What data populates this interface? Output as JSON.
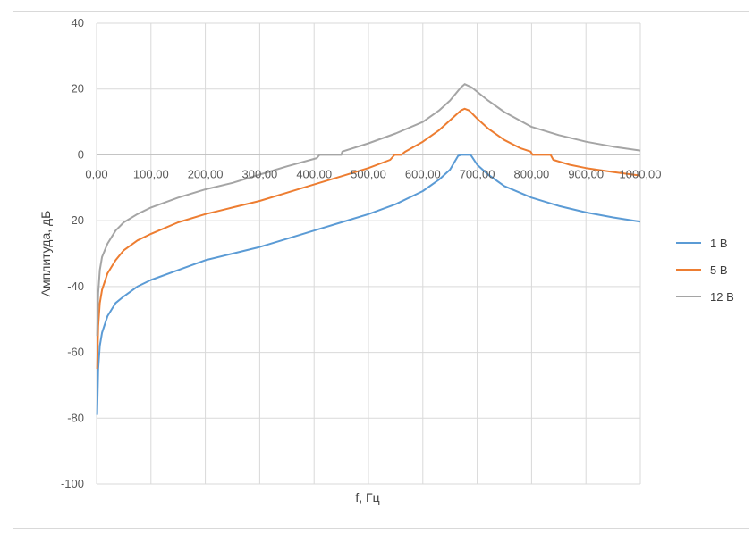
{
  "chart_data": {
    "type": "line",
    "xlabel": "f, Гц",
    "ylabel": "Амплитуда, дБ",
    "xlim": [
      0,
      1000
    ],
    "ylim": [
      -100,
      40
    ],
    "x_ticks": [
      "0,00",
      "100,00",
      "200,00",
      "300,00",
      "400,00",
      "500,00",
      "600,00",
      "700,00",
      "800,00",
      "900,00",
      "1000,00"
    ],
    "y_ticks": [
      "40",
      "20",
      "0",
      "-20",
      "-40",
      "-60",
      "-80",
      "-100"
    ],
    "grid": true,
    "legend_position": "right",
    "series": [
      {
        "name": "1 В",
        "color": "#5b9bd5",
        "points": [
          [
            1,
            -79
          ],
          [
            3,
            -65
          ],
          [
            6,
            -58
          ],
          [
            10,
            -54
          ],
          [
            20,
            -49
          ],
          [
            35,
            -45
          ],
          [
            50,
            -43
          ],
          [
            75,
            -40
          ],
          [
            100,
            -38
          ],
          [
            150,
            -35
          ],
          [
            200,
            -32
          ],
          [
            250,
            -30
          ],
          [
            300,
            -28
          ],
          [
            350,
            -25.5
          ],
          [
            400,
            -23
          ],
          [
            450,
            -20.5
          ],
          [
            500,
            -18
          ],
          [
            550,
            -15
          ],
          [
            600,
            -11
          ],
          [
            630,
            -7.5
          ],
          [
            650,
            -4.5
          ],
          [
            665,
            -0.3
          ],
          [
            670,
            0
          ],
          [
            680,
            0
          ],
          [
            688,
            0
          ],
          [
            700,
            -3
          ],
          [
            720,
            -6
          ],
          [
            750,
            -9.5
          ],
          [
            800,
            -13
          ],
          [
            850,
            -15.5
          ],
          [
            900,
            -17.5
          ],
          [
            950,
            -19
          ],
          [
            1000,
            -20.3
          ]
        ]
      },
      {
        "name": "5 В",
        "color": "#ed7d31",
        "points": [
          [
            1,
            -65
          ],
          [
            3,
            -52
          ],
          [
            6,
            -45
          ],
          [
            10,
            -41
          ],
          [
            20,
            -36
          ],
          [
            35,
            -32
          ],
          [
            50,
            -29
          ],
          [
            75,
            -26
          ],
          [
            100,
            -24
          ],
          [
            150,
            -20.5
          ],
          [
            200,
            -18
          ],
          [
            250,
            -16
          ],
          [
            300,
            -14
          ],
          [
            350,
            -11.5
          ],
          [
            400,
            -9
          ],
          [
            450,
            -6.5
          ],
          [
            500,
            -4
          ],
          [
            540,
            -1.5
          ],
          [
            548,
            0
          ],
          [
            560,
            0
          ],
          [
            568,
            1
          ],
          [
            600,
            4
          ],
          [
            630,
            7.5
          ],
          [
            650,
            10.5
          ],
          [
            670,
            13.5
          ],
          [
            677,
            14
          ],
          [
            685,
            13.5
          ],
          [
            700,
            11
          ],
          [
            720,
            8
          ],
          [
            750,
            4.5
          ],
          [
            780,
            2
          ],
          [
            798,
            1
          ],
          [
            802,
            0
          ],
          [
            835,
            0
          ],
          [
            840,
            -1.5
          ],
          [
            870,
            -3
          ],
          [
            900,
            -4
          ],
          [
            950,
            -5.2
          ],
          [
            1000,
            -6.3
          ]
        ]
      },
      {
        "name": "12 В",
        "color": "#a5a5a5",
        "points": [
          [
            1,
            -55
          ],
          [
            3,
            -42
          ],
          [
            6,
            -35
          ],
          [
            10,
            -31
          ],
          [
            20,
            -27
          ],
          [
            35,
            -23
          ],
          [
            50,
            -20.5
          ],
          [
            75,
            -18
          ],
          [
            100,
            -16
          ],
          [
            150,
            -13
          ],
          [
            200,
            -10.5
          ],
          [
            250,
            -8.5
          ],
          [
            300,
            -6
          ],
          [
            350,
            -3.5
          ],
          [
            405,
            -1
          ],
          [
            410,
            0
          ],
          [
            450,
            0
          ],
          [
            452,
            1
          ],
          [
            500,
            3.5
          ],
          [
            550,
            6.5
          ],
          [
            600,
            10
          ],
          [
            630,
            13.5
          ],
          [
            650,
            16.5
          ],
          [
            670,
            20.5
          ],
          [
            677,
            21.5
          ],
          [
            690,
            20.5
          ],
          [
            720,
            16.5
          ],
          [
            750,
            13
          ],
          [
            800,
            8.5
          ],
          [
            850,
            6
          ],
          [
            900,
            4
          ],
          [
            950,
            2.5
          ],
          [
            1000,
            1.3
          ]
        ]
      }
    ]
  }
}
